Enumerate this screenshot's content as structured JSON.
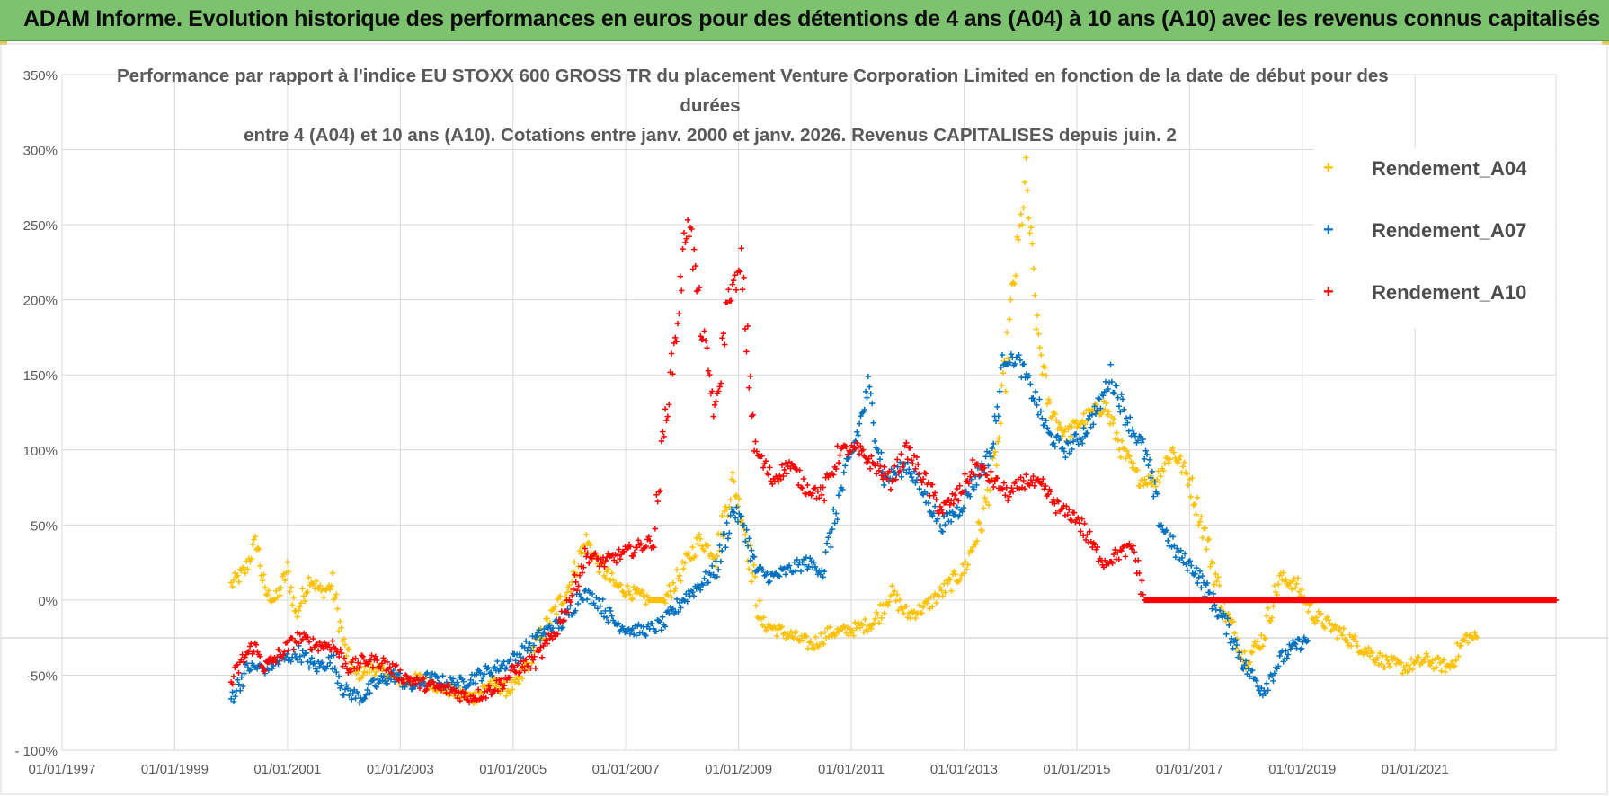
{
  "banner": {
    "title": "ADAM Informe. Evolution historique des performances en euros pour des détentions de 4 ans (A04) à 10 ans (A10) avec les revenus connus capitalisés"
  },
  "chart_data": {
    "type": "scatter",
    "title_lines": [
      "Performance par rapport à l'indice EU STOXX 600 GROSS TR  du placement Venture Corporation Limited en fonction de la date de début pour des",
      "durées",
      "entre 4 (A04) et 10 ans (A10).  Cotations entre janv. 2000 et janv. 2026. Revenus CAPITALISES depuis juin. 2"
    ],
    "xlabel": "",
    "ylabel": "",
    "x_tick_labels": [
      "01/01/1997",
      "01/01/1999",
      "01/01/2001",
      "01/01/2003",
      "01/01/2005",
      "01/01/2007",
      "01/01/2009",
      "01/01/2011",
      "01/01/2013",
      "01/01/2015",
      "01/01/2017",
      "01/01/2019",
      "01/01/2021"
    ],
    "x_range_years": [
      1997.0,
      2023.5
    ],
    "y_tick_labels": [
      "350%",
      "300%",
      "250%",
      "200%",
      "150%",
      "100%",
      "50%",
      "0%",
      "-50%",
      "- 100%"
    ],
    "ylim": [
      -100,
      350
    ],
    "grid": true,
    "legend_position": "top-right",
    "marker": "+",
    "series": [
      {
        "name": "Rendement_A04",
        "color": "#ffc000",
        "points": [
          [
            2000.0,
            10
          ],
          [
            2000.25,
            20
          ],
          [
            2000.45,
            40
          ],
          [
            2000.6,
            5
          ],
          [
            2000.8,
            0
          ],
          [
            2001.0,
            20
          ],
          [
            2001.15,
            -10
          ],
          [
            2001.4,
            15
          ],
          [
            2001.6,
            5
          ],
          [
            2001.8,
            10
          ],
          [
            2002.0,
            -30
          ],
          [
            2002.2,
            -50
          ],
          [
            2002.5,
            -45
          ],
          [
            2002.8,
            -50
          ],
          [
            2003.1,
            -55
          ],
          [
            2003.4,
            -52
          ],
          [
            2003.7,
            -58
          ],
          [
            2004.0,
            -62
          ],
          [
            2004.3,
            -65
          ],
          [
            2004.6,
            -55
          ],
          [
            2004.9,
            -60
          ],
          [
            2005.1,
            -55
          ],
          [
            2005.4,
            -30
          ],
          [
            2005.7,
            -10
          ],
          [
            2006.0,
            10
          ],
          [
            2006.3,
            40
          ],
          [
            2006.5,
            25
          ],
          [
            2006.8,
            10
          ],
          [
            2007.1,
            5
          ],
          [
            2007.4,
            0
          ],
          [
            2007.7,
            0
          ],
          [
            2008.0,
            20
          ],
          [
            2008.3,
            40
          ],
          [
            2008.6,
            30
          ],
          [
            2008.9,
            80
          ],
          [
            2009.1,
            50
          ],
          [
            2009.4,
            -15
          ],
          [
            2009.7,
            -20
          ],
          [
            2010.0,
            -25
          ],
          [
            2010.3,
            -30
          ],
          [
            2010.6,
            -22
          ],
          [
            2011.0,
            -20
          ],
          [
            2011.4,
            -15
          ],
          [
            2011.7,
            5
          ],
          [
            2012.0,
            -10
          ],
          [
            2012.3,
            -5
          ],
          [
            2012.6,
            5
          ],
          [
            2013.0,
            20
          ],
          [
            2013.3,
            50
          ],
          [
            2013.6,
            100
          ],
          [
            2013.85,
            200
          ],
          [
            2014.1,
            280
          ],
          [
            2014.3,
            180
          ],
          [
            2014.5,
            130
          ],
          [
            2014.8,
            110
          ],
          [
            2015.1,
            120
          ],
          [
            2015.5,
            130
          ],
          [
            2015.8,
            100
          ],
          [
            2016.1,
            80
          ],
          [
            2016.4,
            80
          ],
          [
            2016.7,
            100
          ],
          [
            2017.0,
            80
          ],
          [
            2017.3,
            40
          ],
          [
            2017.6,
            -5
          ],
          [
            2018.0,
            -40
          ],
          [
            2018.3,
            -25
          ],
          [
            2018.6,
            15
          ],
          [
            2018.9,
            10
          ],
          [
            2019.2,
            -10
          ],
          [
            2019.6,
            -20
          ],
          [
            2020.0,
            -30
          ],
          [
            2020.4,
            -40
          ],
          [
            2020.8,
            -45
          ],
          [
            2021.2,
            -40
          ],
          [
            2021.6,
            -45
          ],
          [
            2021.9,
            -25
          ],
          [
            2022.1,
            -25
          ]
        ]
      },
      {
        "name": "Rendement_A07",
        "color": "#0070c0",
        "points": [
          [
            2000.0,
            -65
          ],
          [
            2000.3,
            -45
          ],
          [
            2000.6,
            -45
          ],
          [
            2000.9,
            -40
          ],
          [
            2001.2,
            -35
          ],
          [
            2001.5,
            -45
          ],
          [
            2001.8,
            -40
          ],
          [
            2002.0,
            -60
          ],
          [
            2002.3,
            -65
          ],
          [
            2002.6,
            -55
          ],
          [
            2002.9,
            -50
          ],
          [
            2003.2,
            -58
          ],
          [
            2003.5,
            -52
          ],
          [
            2003.8,
            -55
          ],
          [
            2004.1,
            -55
          ],
          [
            2004.4,
            -50
          ],
          [
            2004.7,
            -45
          ],
          [
            2005.0,
            -40
          ],
          [
            2005.3,
            -30
          ],
          [
            2005.6,
            -20
          ],
          [
            2005.9,
            -15
          ],
          [
            2006.2,
            5
          ],
          [
            2006.5,
            0
          ],
          [
            2006.8,
            -15
          ],
          [
            2007.1,
            -20
          ],
          [
            2007.4,
            -20
          ],
          [
            2007.7,
            -15
          ],
          [
            2008.0,
            0
          ],
          [
            2008.3,
            10
          ],
          [
            2008.6,
            20
          ],
          [
            2008.9,
            60
          ],
          [
            2009.1,
            50
          ],
          [
            2009.3,
            20
          ],
          [
            2009.6,
            15
          ],
          [
            2009.9,
            20
          ],
          [
            2010.2,
            25
          ],
          [
            2010.5,
            20
          ],
          [
            2010.8,
            70
          ],
          [
            2011.1,
            110
          ],
          [
            2011.3,
            140
          ],
          [
            2011.6,
            80
          ],
          [
            2012.0,
            90
          ],
          [
            2012.3,
            70
          ],
          [
            2012.6,
            50
          ],
          [
            2012.9,
            60
          ],
          [
            2013.2,
            80
          ],
          [
            2013.5,
            100
          ],
          [
            2013.7,
            160
          ],
          [
            2013.95,
            160
          ],
          [
            2014.2,
            140
          ],
          [
            2014.5,
            110
          ],
          [
            2014.8,
            100
          ],
          [
            2015.1,
            110
          ],
          [
            2015.4,
            130
          ],
          [
            2015.6,
            150
          ],
          [
            2015.9,
            120
          ],
          [
            2016.2,
            100
          ],
          [
            2016.5,
            50
          ],
          [
            2016.8,
            30
          ],
          [
            2017.1,
            20
          ],
          [
            2017.4,
            0
          ],
          [
            2017.7,
            -20
          ],
          [
            2018.0,
            -45
          ],
          [
            2018.3,
            -60
          ],
          [
            2018.6,
            -40
          ],
          [
            2018.9,
            -30
          ],
          [
            2019.1,
            -27
          ]
        ]
      },
      {
        "name": "Rendement_A10",
        "color": "#ff0000",
        "points": [
          [
            2000.0,
            -55
          ],
          [
            2000.2,
            -40
          ],
          [
            2000.4,
            -30
          ],
          [
            2000.6,
            -45
          ],
          [
            2000.9,
            -35
          ],
          [
            2001.2,
            -25
          ],
          [
            2001.5,
            -30
          ],
          [
            2001.8,
            -30
          ],
          [
            2002.1,
            -45
          ],
          [
            2002.4,
            -40
          ],
          [
            2002.7,
            -42
          ],
          [
            2003.0,
            -50
          ],
          [
            2003.3,
            -55
          ],
          [
            2003.6,
            -58
          ],
          [
            2003.9,
            -60
          ],
          [
            2004.2,
            -65
          ],
          [
            2004.5,
            -62
          ],
          [
            2004.8,
            -55
          ],
          [
            2005.1,
            -45
          ],
          [
            2005.4,
            -40
          ],
          [
            2005.7,
            -25
          ],
          [
            2006.0,
            0
          ],
          [
            2006.3,
            30
          ],
          [
            2006.6,
            25
          ],
          [
            2006.9,
            30
          ],
          [
            2007.2,
            35
          ],
          [
            2007.5,
            40
          ],
          [
            2007.7,
            120
          ],
          [
            2007.9,
            180
          ],
          [
            2008.1,
            260
          ],
          [
            2008.35,
            180
          ],
          [
            2008.6,
            120
          ],
          [
            2008.8,
            200
          ],
          [
            2009.05,
            220
          ],
          [
            2009.3,
            100
          ],
          [
            2009.6,
            80
          ],
          [
            2009.9,
            90
          ],
          [
            2010.2,
            75
          ],
          [
            2010.5,
            70
          ],
          [
            2010.8,
            100
          ],
          [
            2011.1,
            100
          ],
          [
            2011.4,
            90
          ],
          [
            2011.7,
            80
          ],
          [
            2012.0,
            100
          ],
          [
            2012.3,
            80
          ],
          [
            2012.6,
            60
          ],
          [
            2012.9,
            70
          ],
          [
            2013.2,
            90
          ],
          [
            2013.5,
            80
          ],
          [
            2013.8,
            70
          ],
          [
            2014.1,
            80
          ],
          [
            2014.4,
            75
          ],
          [
            2014.7,
            60
          ],
          [
            2015.0,
            55
          ],
          [
            2015.3,
            35
          ],
          [
            2015.5,
            25
          ],
          [
            2015.7,
            30
          ],
          [
            2016.0,
            35
          ],
          [
            2016.2,
            0
          ],
          [
            2017.0,
            0
          ],
          [
            2018.0,
            0
          ],
          [
            2019.0,
            0
          ],
          [
            2020.0,
            0
          ],
          [
            2021.0,
            0
          ],
          [
            2022.0,
            0
          ],
          [
            2023.0,
            0
          ],
          [
            2023.5,
            0
          ]
        ]
      }
    ]
  }
}
